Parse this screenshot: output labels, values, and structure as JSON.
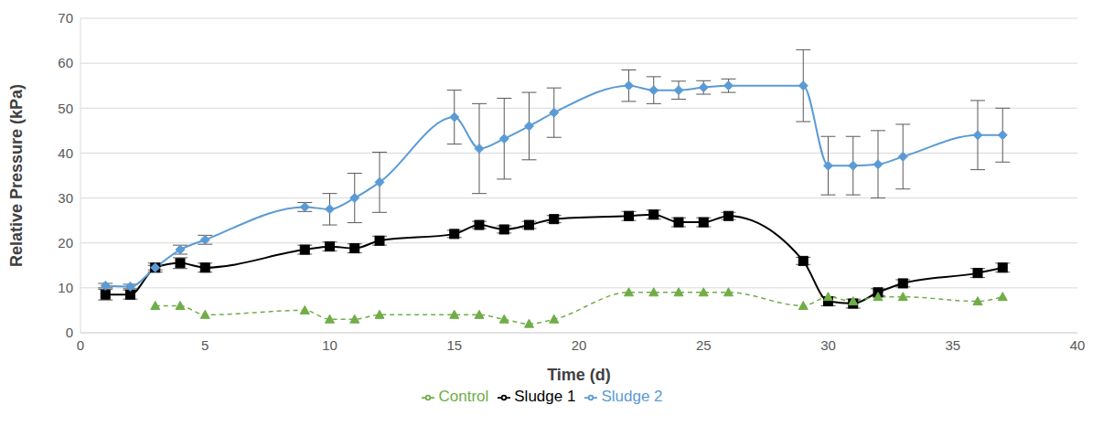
{
  "chart_data": {
    "type": "line",
    "xlabel": "Time (d)",
    "ylabel": "Relative Pressure (kPa)",
    "x": [
      1,
      2,
      3,
      4,
      5,
      9,
      10,
      11,
      12,
      15,
      16,
      17,
      18,
      19,
      22,
      23,
      24,
      25,
      26,
      29,
      30,
      31,
      32,
      33,
      36,
      37
    ],
    "xlim": [
      0,
      40
    ],
    "xticks": [
      0,
      5,
      10,
      15,
      20,
      25,
      30,
      35,
      40
    ],
    "ylim": [
      0,
      70
    ],
    "yticks": [
      0,
      10,
      20,
      30,
      40,
      50,
      60,
      70
    ],
    "grid": true,
    "legend": "bottom",
    "series": [
      {
        "name": "Sludge 1",
        "color": "#000000",
        "marker": "square",
        "line_style": "solid",
        "values": [
          8.5,
          8.5,
          14.5,
          15.5,
          14.5,
          18.5,
          19.2,
          18.8,
          20.5,
          22,
          24,
          23,
          24,
          25.3,
          26,
          26.3,
          24.6,
          24.6,
          26,
          16,
          7,
          6.5,
          9,
          11,
          13.3,
          14.5
        ],
        "errors": [
          1.2,
          1,
          1,
          1.2,
          1,
          1,
          1,
          1,
          1,
          0.8,
          0.8,
          0.8,
          0.8,
          0.8,
          1,
          1,
          1,
          1,
          0.8,
          0.8,
          1,
          1,
          0.8,
          0.8,
          1,
          1
        ]
      },
      {
        "name": "Sludge 2",
        "color": "#5b9bd5",
        "marker": "diamond",
        "line_style": "solid",
        "values": [
          10.5,
          10.3,
          14.5,
          18.5,
          20.7,
          28,
          27.5,
          30,
          33.5,
          48,
          41,
          43.2,
          46,
          49,
          55,
          54,
          54,
          54.6,
          55,
          55,
          37.2,
          37.2,
          37.5,
          39.2,
          44,
          44
        ],
        "errors": [
          0.5,
          0.5,
          0.5,
          1,
          1,
          1,
          3.5,
          5.5,
          6.7,
          6,
          10,
          9,
          7.5,
          5.5,
          3.5,
          3,
          2,
          1.5,
          1.5,
          8,
          6.5,
          6.5,
          7.5,
          7.2,
          7.7,
          6
        ]
      },
      {
        "name": "Control",
        "color": "#70ad47",
        "marker": "triangle",
        "line_style": "dashed",
        "values": [
          null,
          null,
          6,
          6,
          4,
          5,
          3,
          3,
          4,
          4,
          4,
          3,
          2,
          3,
          9,
          9,
          9,
          9,
          9,
          6,
          8,
          7,
          8,
          8,
          7,
          8
        ]
      }
    ]
  }
}
